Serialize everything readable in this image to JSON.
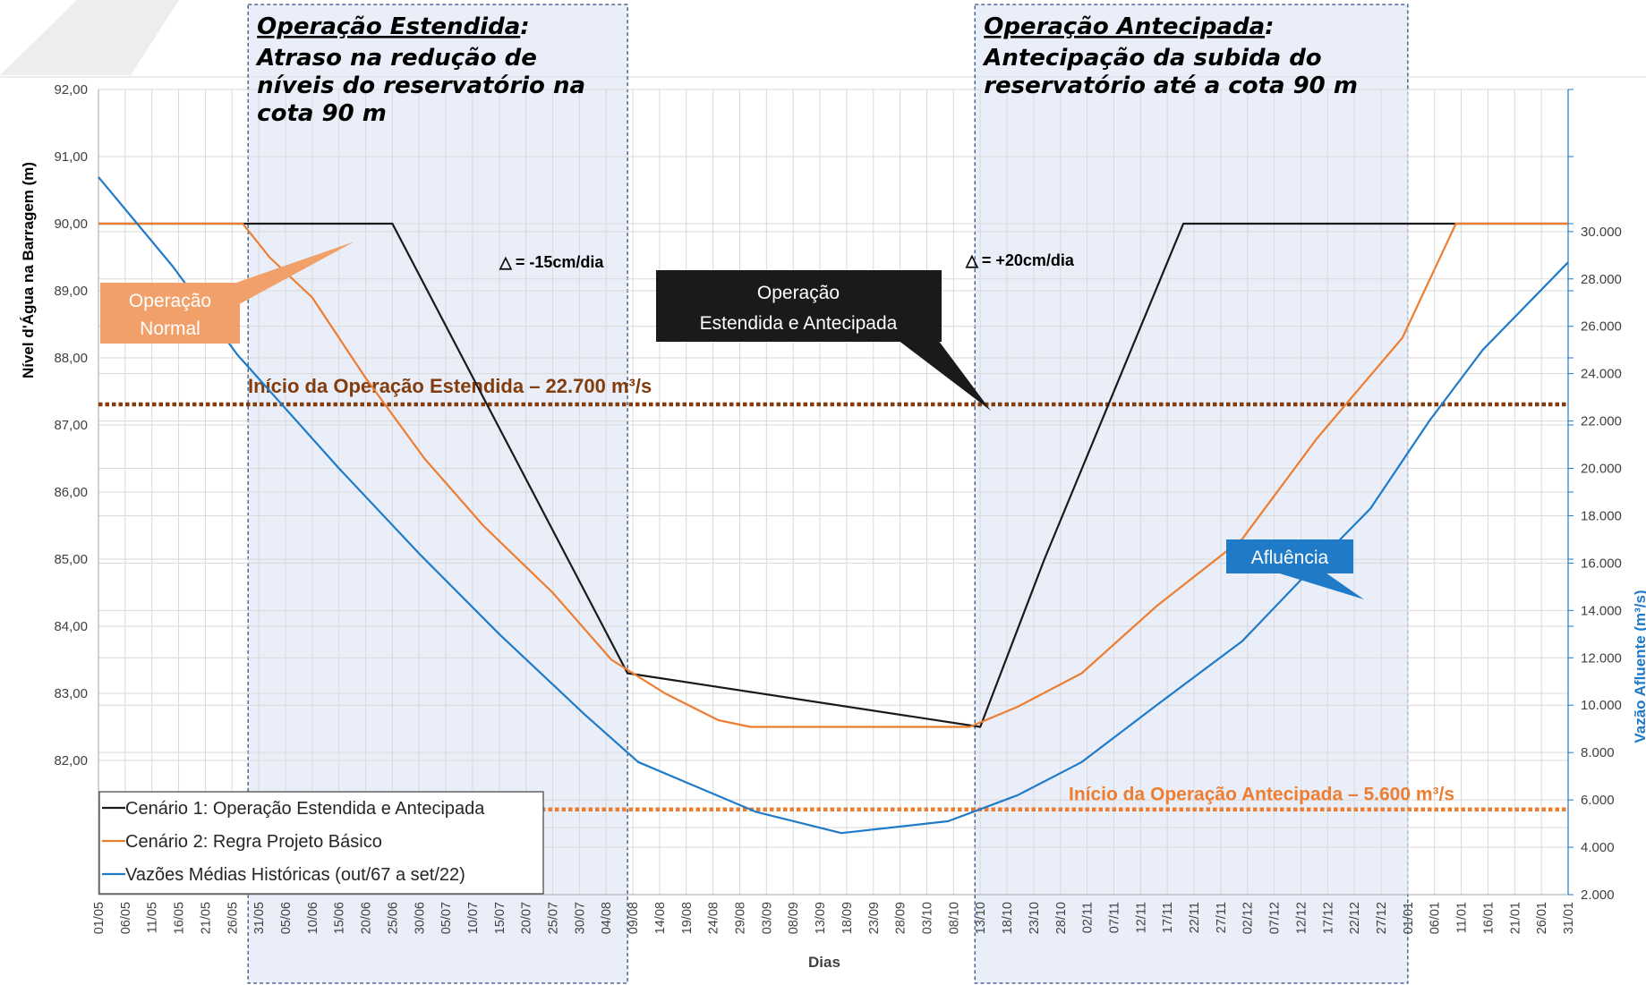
{
  "chart_data": {
    "type": "line",
    "xlabel": "Dias",
    "ylabel_left": "Nível d'Água na Barragem (m)",
    "ylabel_right": "Vazão Afluente (m³/s)",
    "left_axis": {
      "ylim": [
        80.0,
        92.0
      ],
      "tick_labels": [
        "92,00",
        "91,00",
        "90,00",
        "89,00",
        "88,00",
        "87,00",
        "86,00",
        "85,00",
        "84,00",
        "83,00",
        "82,00"
      ]
    },
    "right_axis": {
      "ylim": [
        2000,
        36000
      ],
      "tick_labels": [
        "30.000",
        "28.000",
        "26.000",
        "24.000",
        "22.000",
        "20.000",
        "18.000",
        "16.000",
        "14.000",
        "12.000",
        "10.000",
        "8.000",
        "6.000",
        "4.000",
        "2.000"
      ]
    },
    "x_tick_labels": [
      "01/05",
      "06/05",
      "11/05",
      "16/05",
      "21/05",
      "26/05",
      "31/05",
      "05/06",
      "10/06",
      "15/06",
      "20/06",
      "25/06",
      "30/06",
      "05/07",
      "10/07",
      "15/07",
      "20/07",
      "25/07",
      "30/07",
      "04/08",
      "09/08",
      "14/08",
      "19/08",
      "24/08",
      "29/08",
      "03/09",
      "08/09",
      "13/09",
      "18/09",
      "23/09",
      "28/09",
      "03/10",
      "08/10",
      "13/10",
      "18/10",
      "23/10",
      "28/10",
      "02/11",
      "07/11",
      "12/11",
      "17/11",
      "22/11",
      "27/11",
      "02/12",
      "07/12",
      "12/12",
      "17/12",
      "22/12",
      "27/12",
      "01/01",
      "06/01",
      "11/01",
      "16/01",
      "21/01",
      "26/01",
      "31/01"
    ],
    "grid": true,
    "legend_position": "bottom-left",
    "series": [
      {
        "name": "Cenário 1: Operação Estendida e Antecipada",
        "axis": "left",
        "color": "#1a1a1a",
        "points": [
          [
            "01/05",
            90.0
          ],
          [
            "25/06",
            90.0
          ],
          [
            "08/08",
            83.3
          ],
          [
            "13/10",
            82.5
          ],
          [
            "25/10",
            85.0
          ],
          [
            "20/11",
            90.0
          ],
          [
            "31/01",
            90.0
          ]
        ]
      },
      {
        "name": "Cenário 2: Regra Projeto Básico",
        "axis": "left",
        "color": "#ed7d31",
        "points": [
          [
            "01/05",
            90.0
          ],
          [
            "28/05",
            90.0
          ],
          [
            "02/06",
            89.5
          ],
          [
            "10/06",
            88.9
          ],
          [
            "20/06",
            87.7
          ],
          [
            "01/07",
            86.5
          ],
          [
            "12/07",
            85.5
          ],
          [
            "25/07",
            84.5
          ],
          [
            "05/08",
            83.5
          ],
          [
            "15/08",
            83.0
          ],
          [
            "25/08",
            82.6
          ],
          [
            "31/08",
            82.5
          ],
          [
            "11/10",
            82.5
          ],
          [
            "20/10",
            82.8
          ],
          [
            "01/11",
            83.3
          ],
          [
            "15/11",
            84.3
          ],
          [
            "01/12",
            85.3
          ],
          [
            "15/12",
            86.8
          ],
          [
            "31/12",
            88.3
          ],
          [
            "10/01",
            90.0
          ],
          [
            "31/01",
            90.0
          ]
        ]
      },
      {
        "name": "Vazões Médias Históricas (out/67 a set/22)",
        "axis": "right",
        "color": "#1f7ac8",
        "points": [
          [
            "01/05",
            32300
          ],
          [
            "15/05",
            28500
          ],
          [
            "27/05",
            24800
          ],
          [
            "15/06",
            20000
          ],
          [
            "30/06",
            16400
          ],
          [
            "15/07",
            13000
          ],
          [
            "31/07",
            9600
          ],
          [
            "10/08",
            7600
          ],
          [
            "01/09",
            5500
          ],
          [
            "17/09",
            4600
          ],
          [
            "07/10",
            5100
          ],
          [
            "20/10",
            6200
          ],
          [
            "01/11",
            7600
          ],
          [
            "15/11",
            10000
          ],
          [
            "01/12",
            12700
          ],
          [
            "15/12",
            16000
          ],
          [
            "25/12",
            18300
          ],
          [
            "05/01",
            22000
          ],
          [
            "15/01",
            25000
          ],
          [
            "31/01",
            28700
          ]
        ]
      }
    ],
    "thresholds": [
      {
        "label": "Início da Operação Estendida – 22.700 m³/s",
        "value": 22700,
        "color": "#843c0c"
      },
      {
        "label": "Início da Operação Antecipada – 5.600 m³/s",
        "value": 5600,
        "color": "#ed7d31"
      }
    ],
    "regions": [
      {
        "title": "Operação Estendida",
        "subtitle": [
          " Atraso na redução de",
          "níveis do reservatório na",
          "cota 90 m"
        ],
        "from": "29/05",
        "to": "08/08"
      },
      {
        "title": "Operação Antecipada",
        "subtitle": [
          "Antecipação da subida do",
          "reservatório até a cota 90 m"
        ],
        "from": "12/10",
        "to": "01/01"
      }
    ],
    "annotations": {
      "rate_down": "-15cm/dia",
      "rate_up": "+20cm/dia",
      "delta_symbol": "△",
      "callout_normal": [
        "Operação",
        "Normal"
      ],
      "callout_extended": [
        "Operação",
        "Estendida e Antecipada"
      ],
      "callout_inflow": "Afluência"
    }
  }
}
